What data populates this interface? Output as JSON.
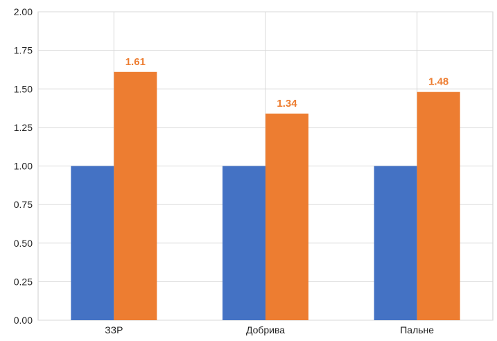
{
  "chart_data": {
    "type": "bar",
    "categories": [
      "ЗЗР",
      "Добрива",
      "Пальне"
    ],
    "series": [
      {
        "values": [
          1.0,
          1.0,
          1.0
        ],
        "color": "#4472C4",
        "show_labels": false
      },
      {
        "values": [
          1.61,
          1.34,
          1.48
        ],
        "color": "#ED7D31",
        "show_labels": true
      }
    ],
    "y_ticks": [
      "0.00",
      "0.25",
      "0.50",
      "0.75",
      "1.00",
      "1.25",
      "1.50",
      "1.75",
      "2.00"
    ],
    "ylim": [
      0,
      2.0
    ],
    "data_labels": [
      "1.61",
      "1.34",
      "1.48"
    ],
    "grid": true,
    "title": "",
    "xlabel": "",
    "ylabel": ""
  }
}
